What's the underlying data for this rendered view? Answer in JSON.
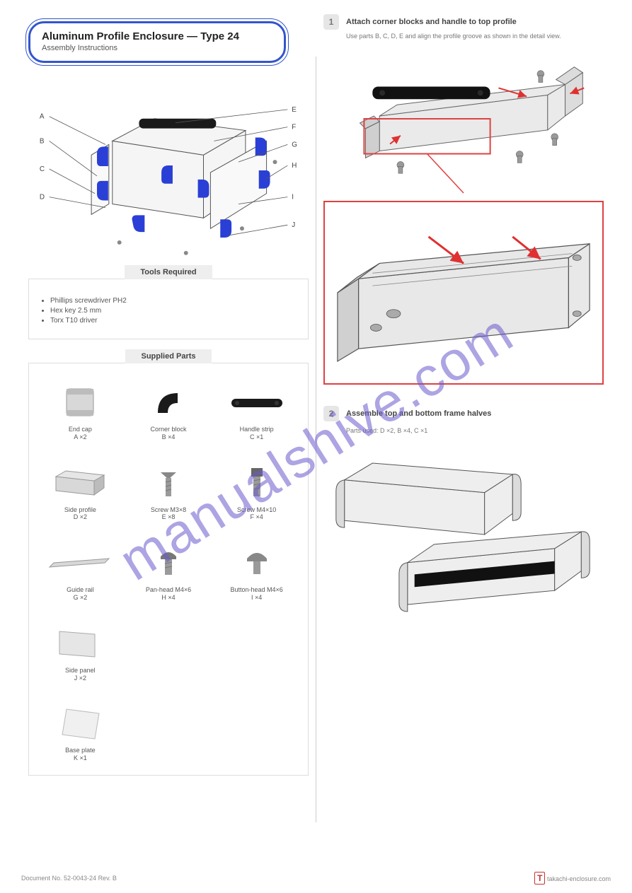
{
  "title": {
    "line1": "Aluminum Profile Enclosure — Type 24",
    "line2": "Assembly Instructions"
  },
  "overview": {
    "callouts": [
      "A",
      "B",
      "C",
      "D",
      "E",
      "F",
      "G",
      "H",
      "I",
      "J"
    ],
    "accent_color": "#2a3fd6",
    "panel_color": "#f5f5f5",
    "line_color": "#555555"
  },
  "tools": {
    "heading": "Tools Required",
    "items": [
      "Phillips screwdriver PH2",
      "Hex key 2.5 mm",
      "Torx T10 driver"
    ]
  },
  "parts": {
    "heading": "Supplied Parts",
    "items": [
      {
        "id": "A",
        "label": "End cap\nA ×2"
      },
      {
        "id": "B",
        "label": "Corner block\nB ×4"
      },
      {
        "id": "C",
        "label": "Handle strip\nC ×1"
      },
      {
        "id": "D",
        "label": "Side profile\nD ×2"
      },
      {
        "id": "E",
        "label": "Screw M3×8\nE ×8"
      },
      {
        "id": "F",
        "label": "Screw M4×10\nF ×4"
      },
      {
        "id": "G",
        "label": "Guide rail\nG ×2"
      },
      {
        "id": "H",
        "label": "Pan-head M4×6\nH ×4"
      },
      {
        "id": "I",
        "label": "Button-head M4×6\nI ×4"
      },
      {
        "id": "J",
        "label": "Side panel\nJ ×2"
      },
      {
        "id": "K",
        "label": "Base plate\nK ×1"
      }
    ]
  },
  "step1": {
    "number": "1",
    "title": "Attach corner blocks and handle to top profile",
    "subtitle": "Use parts B, C, D, E and align the profile groove as shown in the detail view.",
    "detail_border": "#e04040",
    "arrow_color": "#e03030"
  },
  "step2": {
    "number": "2",
    "title": "Assemble top and bottom frame halves",
    "parts_used": "Parts used: D ×2, B ×4, C ×1",
    "handle_color": "#111111"
  },
  "footer": {
    "left": "Document No. 52-0043-24 Rev. B",
    "right_brand": "T",
    "right_text": "takachi-enclosure.com"
  },
  "watermark": "manualshive.com",
  "colors": {
    "title_border": "#3355cc",
    "section_bg": "#eeeeee",
    "box_border": "#dddddd",
    "metal": "#d8d8d8",
    "metal_dark": "#bcbcbc",
    "plastic_black": "#1a1a1a"
  }
}
